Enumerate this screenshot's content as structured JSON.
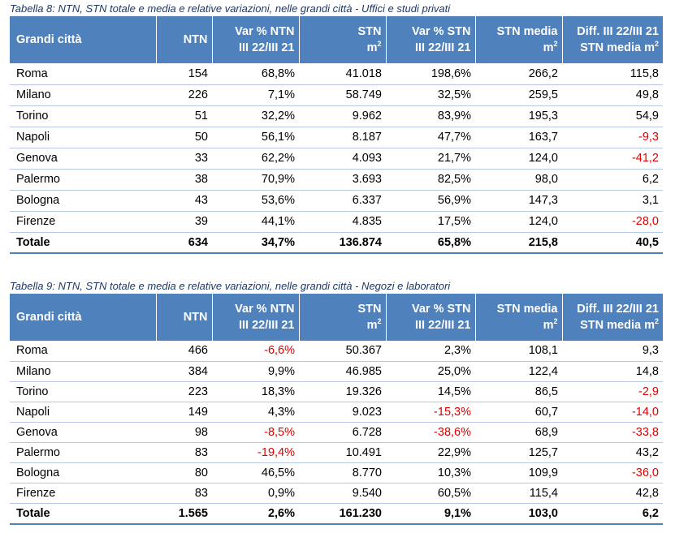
{
  "table8": {
    "caption": "Tabella 8: NTN, STN totale e media e relative variazioni, nelle grandi città - Uffici e studi privati",
    "headers": [
      {
        "line1": "Grandi città",
        "line2": ""
      },
      {
        "line1": "NTN",
        "line2": ""
      },
      {
        "line1": "Var % NTN",
        "line2": "III 22/III 21"
      },
      {
        "line1": "STN",
        "line2": "m",
        "sup": "2"
      },
      {
        "line1": "Var % STN",
        "line2": "III 22/III 21"
      },
      {
        "line1": "STN media",
        "line2": "m",
        "sup": "2"
      },
      {
        "line1": "Diff. III 22/III 21",
        "line2": "STN media m",
        "sup": "2"
      }
    ],
    "rows": [
      [
        "Roma",
        "154",
        "68,8%",
        "41.018",
        "198,6%",
        "266,2",
        "115,8"
      ],
      [
        "Milano",
        "226",
        "7,1%",
        "58.749",
        "32,5%",
        "259,5",
        "49,8"
      ],
      [
        "Torino",
        "51",
        "32,2%",
        "9.962",
        "83,9%",
        "195,3",
        "54,9"
      ],
      [
        "Napoli",
        "50",
        "56,1%",
        "8.187",
        "47,7%",
        "163,7",
        "-9,3"
      ],
      [
        "Genova",
        "33",
        "62,2%",
        "4.093",
        "21,7%",
        "124,0",
        "-41,2"
      ],
      [
        "Palermo",
        "38",
        "70,9%",
        "3.693",
        "82,5%",
        "98,0",
        "6,2"
      ],
      [
        "Bologna",
        "43",
        "53,6%",
        "6.337",
        "56,9%",
        "147,3",
        "3,1"
      ],
      [
        "Firenze",
        "39",
        "44,1%",
        "4.835",
        "17,5%",
        "124,0",
        "-28,0"
      ]
    ],
    "total": [
      "Totale",
      "634",
      "34,7%",
      "136.874",
      "65,8%",
      "215,8",
      "40,5"
    ]
  },
  "table9": {
    "caption": "Tabella 9: NTN, STN totale e media e relative variazioni, nelle grandi città - Negozi e laboratori",
    "headers": [
      {
        "line1": "Grandi città",
        "line2": ""
      },
      {
        "line1": "NTN",
        "line2": ""
      },
      {
        "line1": "Var % NTN",
        "line2": "III 22/III 21"
      },
      {
        "line1": "STN",
        "line2": "m",
        "sup": "2"
      },
      {
        "line1": "Var % STN",
        "line2": "III 22/III 21"
      },
      {
        "line1": "STN media",
        "line2": "m",
        "sup": "2"
      },
      {
        "line1": "Diff. III 22/III 21",
        "line2": "STN media m",
        "sup": "2"
      }
    ],
    "rows": [
      [
        "Roma",
        "466",
        "-6,6%",
        "50.367",
        "2,3%",
        "108,1",
        "9,3"
      ],
      [
        "Milano",
        "384",
        "9,9%",
        "46.985",
        "25,0%",
        "122,4",
        "14,8"
      ],
      [
        "Torino",
        "223",
        "18,3%",
        "19.326",
        "14,5%",
        "86,5",
        "-2,9"
      ],
      [
        "Napoli",
        "149",
        "4,3%",
        "9.023",
        "-15,3%",
        "60,7",
        "-14,0"
      ],
      [
        "Genova",
        "98",
        "-8,5%",
        "6.728",
        "-38,6%",
        "68,9",
        "-33,8"
      ],
      [
        "Palermo",
        "83",
        "-19,4%",
        "10.491",
        "22,9%",
        "125,7",
        "43,2"
      ],
      [
        "Bologna",
        "80",
        "46,5%",
        "8.770",
        "10,3%",
        "109,9",
        "-36,0"
      ],
      [
        "Firenze",
        "83",
        "0,9%",
        "9.540",
        "60,5%",
        "115,4",
        "42,8"
      ]
    ],
    "total": [
      "Totale",
      "1.565",
      "2,6%",
      "161.230",
      "9,1%",
      "103,0",
      "6,2"
    ]
  },
  "colors": {
    "header_bg": "#4f81bd",
    "header_text": "#ffffff",
    "caption_text": "#1f3864",
    "negative": "#e00000",
    "row_line": "#b4c7e7"
  }
}
